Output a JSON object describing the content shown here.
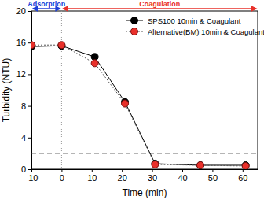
{
  "chart_data": {
    "type": "line",
    "x_label": "Time (min)",
    "y_label": "Turbidity (NTU)",
    "x": [
      -10,
      0,
      11,
      21,
      31,
      46,
      61
    ],
    "series": [
      {
        "name": "SPS100 10min & Coagulant",
        "color": "#000000",
        "marker": "circle",
        "line_style": "solid",
        "values": [
          15.5,
          15.6,
          14.2,
          8.5,
          0.7,
          0.5,
          0.5
        ]
      },
      {
        "name": "Alternative(BM) 10min & Coagulant",
        "color": "#e8302a",
        "marker": "circle",
        "line_style": "dotted",
        "values": [
          15.7,
          15.7,
          13.4,
          8.3,
          0.6,
          0.5,
          0.4
        ]
      }
    ],
    "xlim": [
      -10,
      65
    ],
    "xticks": [
      -10,
      0,
      10,
      20,
      30,
      40,
      50,
      60
    ],
    "ylim": [
      0,
      20
    ],
    "yticks": [
      0,
      4,
      8,
      12,
      16,
      20
    ],
    "grid": false,
    "legend": "upper right",
    "reference_lines": {
      "y": 2,
      "x": 0
    },
    "annotations": [
      {
        "text": "Adsorption",
        "x": [
          -10,
          0
        ],
        "color": "#1f3fd6"
      },
      {
        "text": "Coagulation",
        "x": [
          0,
          65
        ],
        "color": "#e8302a"
      }
    ]
  }
}
